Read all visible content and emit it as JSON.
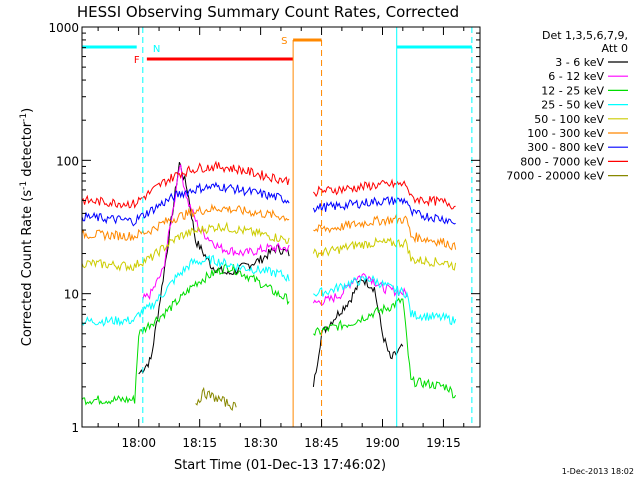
{
  "chart_data": {
    "type": "line",
    "title": "HESSI Observing Summary Count Rates, Corrected",
    "xlabel": "Start Time (01-Dec-13 17:46:02)",
    "ylabel_main": "Corrected Count Rate (s",
    "ylabel_sup1": "-1",
    "ylabel_mid": " detector",
    "ylabel_sup2": "-1",
    "ylabel_end": ")",
    "footer": "1-Dec-2013 18:02",
    "xlim": [
      "17:46:02",
      "19:24:00"
    ],
    "ylim": [
      1,
      1000
    ],
    "yscale": "log",
    "x_ticks": [
      "18:00",
      "18:15",
      "18:30",
      "18:45",
      "19:00",
      "19:15"
    ],
    "y_ticks": [
      "1",
      "10",
      "100",
      "1000"
    ],
    "legend": {
      "position": "right",
      "header1": "Det 1,3,5,6,7,9,",
      "header2": "Att 0"
    },
    "series": [
      {
        "name": "3 - 6 keV",
        "color": "#000000",
        "points": [
          [
            "17:46",
            null
          ],
          [
            "17:59",
            null
          ],
          [
            "18:00",
            2.5
          ],
          [
            "18:03",
            3.2
          ],
          [
            "18:05",
            8
          ],
          [
            "18:08",
            35
          ],
          [
            "18:10",
            96
          ],
          [
            "18:12",
            60
          ],
          [
            "18:14",
            25
          ],
          [
            "18:18",
            16
          ],
          [
            "18:22",
            14
          ],
          [
            "18:26",
            16
          ],
          [
            "18:30",
            18
          ],
          [
            "18:34",
            22
          ],
          [
            "18:37",
            20
          ],
          [
            "18:38",
            null
          ],
          [
            "18:42",
            null
          ],
          [
            "18:43",
            2
          ],
          [
            "18:45",
            5
          ],
          [
            "18:48",
            6.5
          ],
          [
            "18:52",
            9
          ],
          [
            "18:55",
            13
          ],
          [
            "18:58",
            11
          ],
          [
            "19:00",
            5
          ],
          [
            "19:02",
            3.2
          ],
          [
            "19:05",
            4
          ],
          [
            "19:06",
            null
          ]
        ]
      },
      {
        "name": "6 - 12 keV",
        "color": "#ff00ff",
        "points": [
          [
            "17:46",
            null
          ],
          [
            "18:00",
            null
          ],
          [
            "18:01",
            9
          ],
          [
            "18:03",
            10
          ],
          [
            "18:06",
            15
          ],
          [
            "18:09",
            55
          ],
          [
            "18:10",
            95
          ],
          [
            "18:12",
            50
          ],
          [
            "18:15",
            30
          ],
          [
            "18:20",
            22
          ],
          [
            "18:26",
            20
          ],
          [
            "18:32",
            22
          ],
          [
            "18:37",
            22
          ],
          [
            "18:38",
            null
          ],
          [
            "18:42",
            null
          ],
          [
            "18:43",
            8.5
          ],
          [
            "18:47",
            9
          ],
          [
            "18:50",
            10
          ],
          [
            "18:53",
            13
          ],
          [
            "18:56",
            14
          ],
          [
            "19:00",
            11
          ],
          [
            "19:06",
            10
          ],
          [
            "19:07",
            null
          ]
        ]
      },
      {
        "name": "12 - 25 keV",
        "color": "#00dd00",
        "points": [
          [
            "17:46",
            1.6
          ],
          [
            "17:59",
            1.6
          ],
          [
            "18:00",
            5
          ],
          [
            "18:03",
            6
          ],
          [
            "18:06",
            7
          ],
          [
            "18:10",
            9
          ],
          [
            "18:14",
            12
          ],
          [
            "18:18",
            14
          ],
          [
            "18:22",
            16
          ],
          [
            "18:26",
            14
          ],
          [
            "18:30",
            12
          ],
          [
            "18:34",
            10
          ],
          [
            "18:37",
            9
          ],
          [
            "18:38",
            null
          ],
          [
            "18:42",
            null
          ],
          [
            "18:43",
            5
          ],
          [
            "18:47",
            5.5
          ],
          [
            "18:52",
            6
          ],
          [
            "18:57",
            7
          ],
          [
            "19:02",
            8
          ],
          [
            "19:05",
            9
          ],
          [
            "19:07",
            2.2
          ],
          [
            "19:16",
            2
          ],
          [
            "19:18",
            1.7
          ]
        ]
      },
      {
        "name": "25 - 50 keV",
        "color": "#00ffff",
        "points": [
          [
            "17:46",
            6.2
          ],
          [
            "17:59",
            6.3
          ],
          [
            "18:00",
            7
          ],
          [
            "18:03",
            8
          ],
          [
            "18:06",
            10
          ],
          [
            "18:09",
            13
          ],
          [
            "18:13",
            17
          ],
          [
            "18:18",
            18
          ],
          [
            "18:24",
            16
          ],
          [
            "18:30",
            15
          ],
          [
            "18:35",
            14
          ],
          [
            "18:37",
            13
          ],
          [
            "18:38",
            null
          ],
          [
            "18:42",
            null
          ],
          [
            "18:43",
            10
          ],
          [
            "18:47",
            10.5
          ],
          [
            "18:52",
            12
          ],
          [
            "18:57",
            13
          ],
          [
            "19:02",
            11
          ],
          [
            "19:06",
            10
          ],
          [
            "19:07",
            7
          ],
          [
            "19:16",
            6.5
          ],
          [
            "19:18",
            6.2
          ]
        ]
      },
      {
        "name": "50 - 100 keV",
        "color": "#cccc00",
        "points": [
          [
            "17:46",
            17
          ],
          [
            "17:59",
            16
          ],
          [
            "18:00",
            17
          ],
          [
            "18:03",
            18.5
          ],
          [
            "18:06",
            22
          ],
          [
            "18:10",
            27
          ],
          [
            "18:15",
            30
          ],
          [
            "18:20",
            32
          ],
          [
            "18:25",
            30
          ],
          [
            "18:30",
            28
          ],
          [
            "18:35",
            26
          ],
          [
            "18:37",
            25
          ],
          [
            "18:38",
            null
          ],
          [
            "18:42",
            null
          ],
          [
            "18:43",
            20
          ],
          [
            "18:48",
            21
          ],
          [
            "18:53",
            23
          ],
          [
            "18:58",
            24
          ],
          [
            "19:03",
            24
          ],
          [
            "19:06",
            24
          ],
          [
            "19:07",
            18
          ],
          [
            "19:16",
            17
          ],
          [
            "19:18",
            16
          ]
        ]
      },
      {
        "name": "100 - 300 keV",
        "color": "#ff8800",
        "points": [
          [
            "17:46",
            28
          ],
          [
            "17:59",
            27
          ],
          [
            "18:00",
            28
          ],
          [
            "18:03",
            30
          ],
          [
            "18:06",
            34
          ],
          [
            "18:10",
            38
          ],
          [
            "18:15",
            42
          ],
          [
            "18:20",
            44
          ],
          [
            "18:25",
            42
          ],
          [
            "18:30",
            40
          ],
          [
            "18:35",
            38
          ],
          [
            "18:37",
            37
          ],
          [
            "18:38",
            null
          ],
          [
            "18:42",
            null
          ],
          [
            "18:43",
            30
          ],
          [
            "18:48",
            31
          ],
          [
            "18:53",
            33
          ],
          [
            "18:58",
            35
          ],
          [
            "19:03",
            36
          ],
          [
            "19:06",
            36
          ],
          [
            "19:07",
            27
          ],
          [
            "19:16",
            24
          ],
          [
            "19:18",
            22
          ]
        ]
      },
      {
        "name": "300 - 800 keV",
        "color": "#0000ff",
        "points": [
          [
            "17:46",
            38
          ],
          [
            "17:59",
            35
          ],
          [
            "18:00",
            37
          ],
          [
            "18:03",
            42
          ],
          [
            "18:06",
            48
          ],
          [
            "18:10",
            56
          ],
          [
            "18:15",
            62
          ],
          [
            "18:20",
            64
          ],
          [
            "18:25",
            60
          ],
          [
            "18:30",
            56
          ],
          [
            "18:35",
            52
          ],
          [
            "18:37",
            50
          ],
          [
            "18:38",
            null
          ],
          [
            "18:42",
            null
          ],
          [
            "18:43",
            44
          ],
          [
            "18:48",
            45
          ],
          [
            "18:53",
            47
          ],
          [
            "18:58",
            49
          ],
          [
            "19:03",
            50
          ],
          [
            "19:06",
            50
          ],
          [
            "19:07",
            40
          ],
          [
            "19:16",
            36
          ],
          [
            "19:18",
            34
          ]
        ]
      },
      {
        "name": "800 - 7000 keV",
        "color": "#ff0000",
        "points": [
          [
            "17:46",
            50
          ],
          [
            "17:59",
            47
          ],
          [
            "18:00",
            50
          ],
          [
            "18:03",
            58
          ],
          [
            "18:06",
            68
          ],
          [
            "18:10",
            80
          ],
          [
            "18:15",
            88
          ],
          [
            "18:20",
            90
          ],
          [
            "18:25",
            85
          ],
          [
            "18:30",
            78
          ],
          [
            "18:35",
            72
          ],
          [
            "18:37",
            70
          ],
          [
            "18:38",
            null
          ],
          [
            "18:42",
            null
          ],
          [
            "18:43",
            58
          ],
          [
            "18:48",
            60
          ],
          [
            "18:53",
            62
          ],
          [
            "18:58",
            65
          ],
          [
            "19:03",
            66
          ],
          [
            "19:06",
            66
          ],
          [
            "19:07",
            52
          ],
          [
            "19:16",
            48
          ],
          [
            "19:18",
            45
          ]
        ]
      },
      {
        "name": "7000 - 20000 keV",
        "color": "#888800",
        "points": [
          [
            "17:46",
            null
          ],
          [
            "18:13",
            null
          ],
          [
            "18:14",
            1.5
          ],
          [
            "18:16",
            1.8
          ],
          [
            "18:20",
            1.6
          ],
          [
            "18:24",
            1.4
          ],
          [
            "18:25",
            null
          ],
          [
            "19:24",
            null
          ]
        ]
      }
    ],
    "markers": [
      {
        "label": "N",
        "color": "#00ffff"
      },
      {
        "label": "F",
        "color": "#ff0000"
      },
      {
        "label": "S",
        "color": "#ff8800"
      }
    ]
  }
}
